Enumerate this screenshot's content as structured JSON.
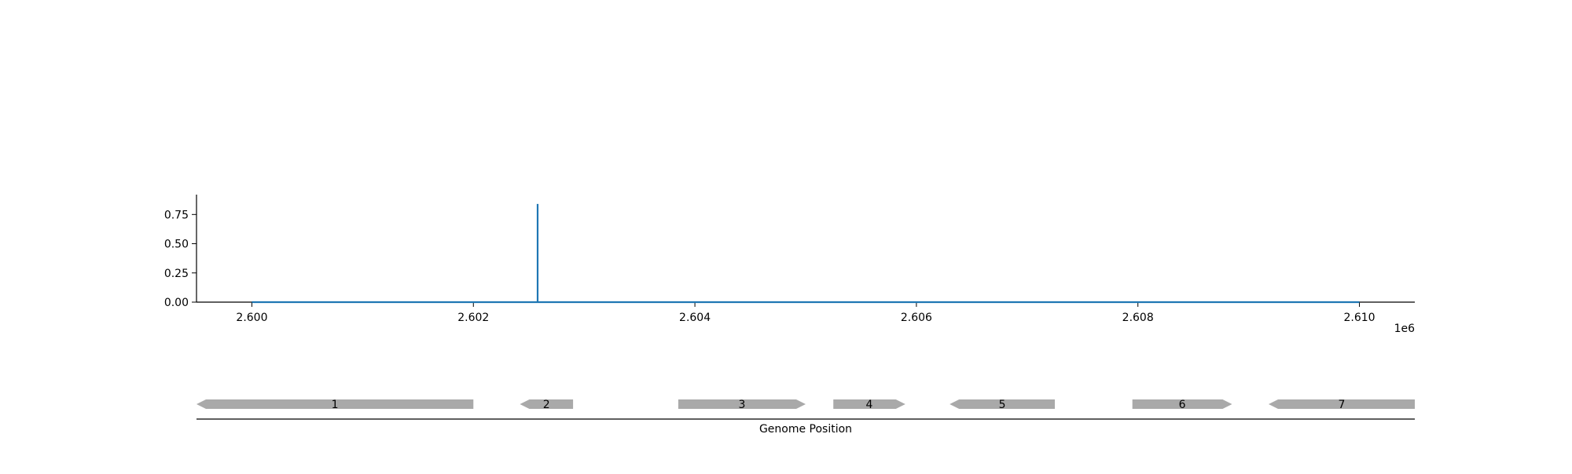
{
  "chart_data": {
    "type": "line",
    "x_offset_label": "1e6",
    "x_ticks": [
      2600000,
      2602000,
      2604000,
      2606000,
      2608000,
      2610000
    ],
    "x_tick_labels": [
      "2.600",
      "2.602",
      "2.604",
      "2.606",
      "2.608",
      "2.610"
    ],
    "xlim": [
      2599500,
      2610500
    ],
    "y_ticks": [
      0.0,
      0.25,
      0.5,
      0.75
    ],
    "y_tick_labels": [
      "0.00",
      "0.25",
      "0.50",
      "0.75"
    ],
    "ylim": [
      0,
      0.92
    ],
    "series": [
      {
        "color": "#1f77b4",
        "x": [
          2600000,
          2602580,
          2602580,
          2602580,
          2610000
        ],
        "y": [
          0,
          0,
          0.84,
          0,
          0
        ]
      }
    ],
    "genes": [
      {
        "label": "1",
        "start": 2599500,
        "end": 2602000,
        "strand": "-"
      },
      {
        "label": "2",
        "start": 2602420,
        "end": 2602900,
        "strand": "-"
      },
      {
        "label": "3",
        "start": 2603850,
        "end": 2605000,
        "strand": "+"
      },
      {
        "label": "4",
        "start": 2605250,
        "end": 2605900,
        "strand": "+"
      },
      {
        "label": "5",
        "start": 2606300,
        "end": 2607250,
        "strand": "-"
      },
      {
        "label": "6",
        "start": 2607950,
        "end": 2608850,
        "strand": "+"
      },
      {
        "label": "7",
        "start": 2609180,
        "end": 2610500,
        "strand": "-"
      }
    ],
    "gene_color": "#a9a9a9",
    "gene_axis_label": "Genome Position"
  }
}
